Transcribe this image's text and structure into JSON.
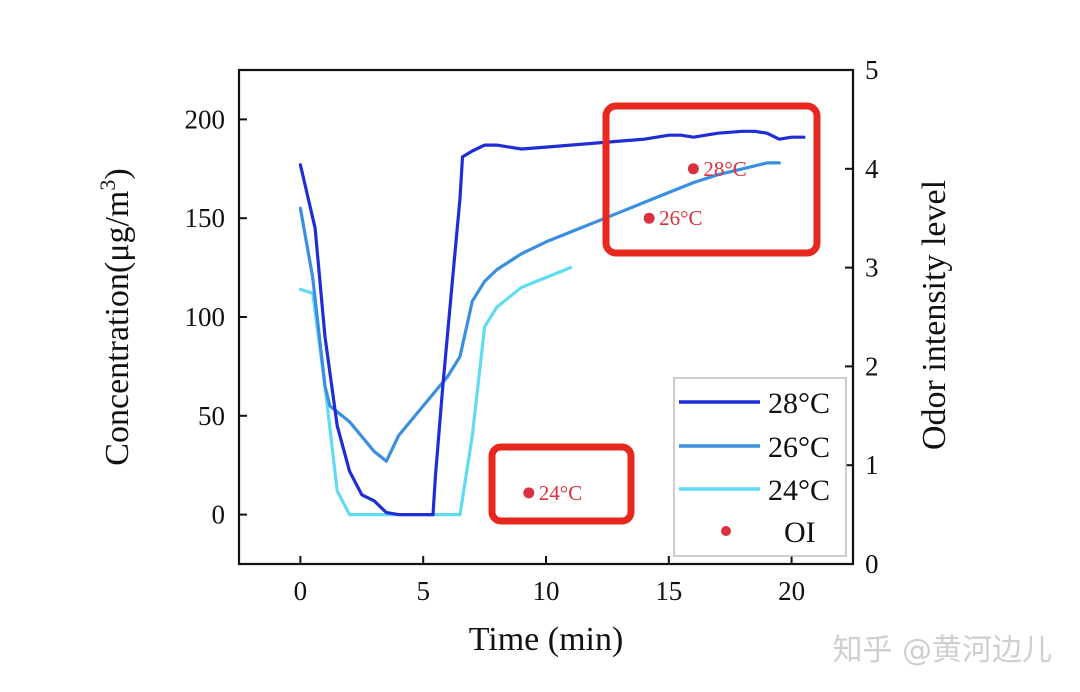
{
  "chart_data": {
    "type": "line",
    "xlabel": "Time (min)",
    "ylabel": "Concentration(μg/m3)",
    "ylabel_parts": [
      "Concentration(μg/m",
      "3",
      ")"
    ],
    "y2label": "Odor intensity level",
    "xlim": [
      -2.5,
      22.5
    ],
    "ylim": [
      -25,
      225
    ],
    "y2lim": [
      0,
      5
    ],
    "xticks": [
      0,
      5,
      10,
      15,
      20
    ],
    "yticks": [
      0,
      50,
      100,
      150,
      200
    ],
    "y2ticks": [
      0,
      1,
      2,
      3,
      4,
      5
    ],
    "legend_position": "bottom-right",
    "series": [
      {
        "name": "28°C",
        "color": "#1f2ed4",
        "x": [
          0,
          0.6,
          1.0,
          1.5,
          2.0,
          2.5,
          3.0,
          3.5,
          4.0,
          5.0,
          5.4,
          5.5,
          5.8,
          6.2,
          6.5,
          6.6,
          7.0,
          7.5,
          8.0,
          8.5,
          9.0,
          10.0,
          11.0,
          12.0,
          13.0,
          14.0,
          15.0,
          15.5,
          16.0,
          17.0,
          18.0,
          18.5,
          19.0,
          19.5,
          20.0,
          20.5
        ],
        "y": [
          177,
          145,
          90,
          45,
          22,
          10,
          7,
          1,
          0,
          0,
          0,
          20,
          65,
          120,
          160,
          181,
          184,
          187,
          187,
          186,
          185,
          186,
          187,
          188,
          189,
          190,
          192,
          192,
          191,
          193,
          194,
          194,
          193,
          190,
          191,
          191
        ]
      },
      {
        "name": "26°C",
        "color": "#3a8fe0",
        "x": [
          0,
          0.5,
          1.0,
          1.2,
          2.0,
          3.0,
          3.5,
          4.0,
          5.0,
          6.0,
          6.5,
          7.0,
          7.5,
          8.0,
          9.0,
          10.0,
          11.0,
          12.0,
          13.0,
          14.0,
          15.0,
          16.0,
          17.0,
          18.0,
          19.0,
          19.5
        ],
        "y": [
          155,
          120,
          65,
          55,
          47,
          32,
          27,
          40,
          55,
          70,
          80,
          108,
          118,
          124,
          132,
          138,
          143,
          148,
          153,
          158,
          163,
          168,
          172,
          175,
          178,
          178
        ]
      },
      {
        "name": "24°C",
        "color": "#5fdcf2",
        "x": [
          0,
          0.5,
          1.0,
          1.5,
          2.0,
          2.5,
          3.0,
          4.0,
          5.0,
          6.0,
          6.5,
          7.0,
          7.5,
          8.0,
          8.5,
          9.0,
          10.0,
          11.0
        ],
        "y": [
          114,
          112,
          65,
          12,
          0,
          0,
          0,
          0,
          0,
          0,
          0,
          40,
          95,
          105,
          110,
          115,
          120,
          125
        ]
      }
    ],
    "oi_points": {
      "name": "OI",
      "color": "#d9313d",
      "points": [
        {
          "x": 9.3,
          "y2": 0.72,
          "label": "24°C"
        },
        {
          "x": 14.2,
          "y2": 3.5,
          "label": "26°C"
        },
        {
          "x": 16.0,
          "y2": 4.0,
          "label": "28°C"
        }
      ]
    }
  },
  "watermark": "知乎 @黄河边儿"
}
